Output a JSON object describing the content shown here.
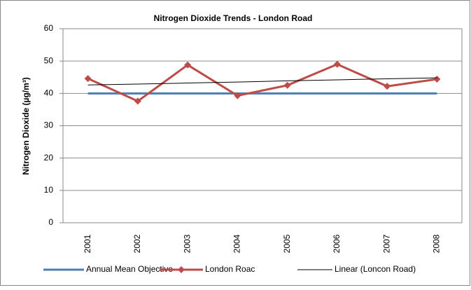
{
  "chart_data": {
    "type": "line",
    "title": "Nitrogen Dioxide Trends - London Road",
    "y_label": "Nitrogen Dioxide (µg/m³)",
    "categories": [
      "2001",
      "2002",
      "2003",
      "2004",
      "2005",
      "2006",
      "2007",
      "2008"
    ],
    "series": [
      {
        "name": "Annual Mean Objective",
        "color": "#4a7ebb",
        "values": [
          40,
          40,
          40,
          40,
          40,
          40,
          40,
          40
        ]
      },
      {
        "name": "London Roac",
        "color": "#be4b48",
        "marker": "diamond",
        "values": [
          44.6,
          37.6,
          48.8,
          39.3,
          42.5,
          49,
          42.2,
          44.4
        ]
      },
      {
        "name": "Linear (Loncon Road)",
        "color": "#000000",
        "values": [
          42.6,
          42.9,
          43.2,
          43.5,
          43.9,
          44.2,
          44.5,
          44.8
        ]
      }
    ],
    "ylim": [
      0,
      60
    ],
    "yticks": [
      0,
      10,
      20,
      30,
      40,
      50,
      60
    ],
    "grid": true,
    "legend": "bottom"
  }
}
